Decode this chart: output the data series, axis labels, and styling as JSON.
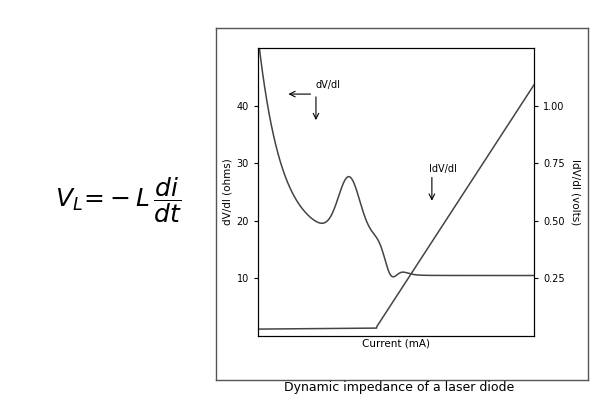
{
  "title": "Dynamic impedance of a laser diode",
  "xlabel": "Current (mA)",
  "ylabel_left": "dV/dI (ohms)",
  "ylabel_right": "IdV/dI (volts)",
  "ylim_left": [
    0,
    50
  ],
  "ylim_right": [
    0,
    1.25
  ],
  "yticks_left": [
    10,
    20,
    30,
    40
  ],
  "yticks_right": [
    0.25,
    0.5,
    0.75,
    1.0
  ],
  "line_color": "#444444",
  "annotation_dvdi": "dV/dI",
  "annotation_idvdi": "IdV/dI",
  "fig_bg_color": "#ffffff",
  "border_color": "#555555"
}
